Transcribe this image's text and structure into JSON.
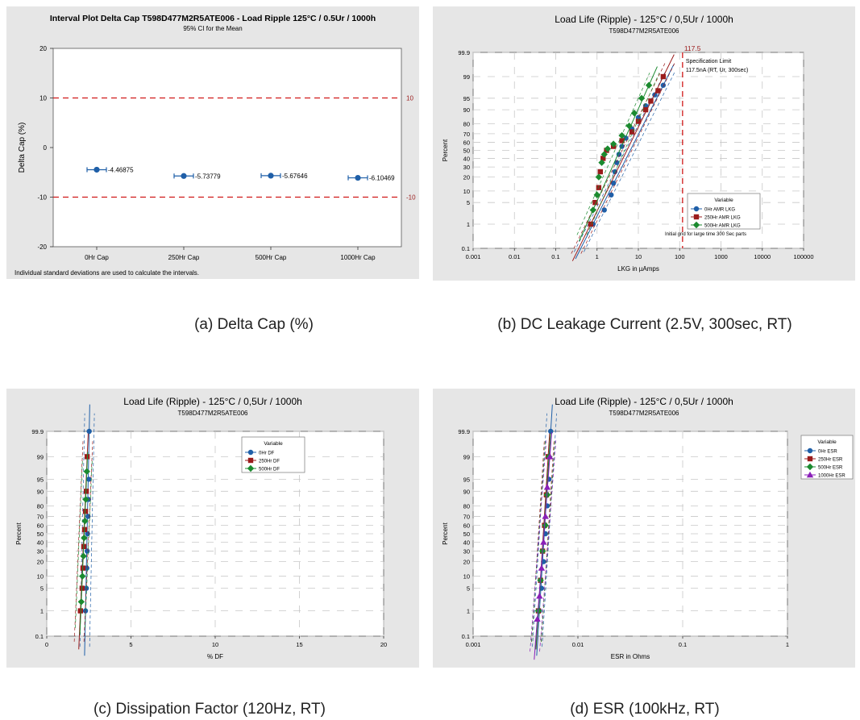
{
  "colors": {
    "blue": "#1f5fa8",
    "red": "#9b1c1c",
    "green": "#1b8a2f",
    "purple": "#8a1fb8",
    "refline": "#d01818"
  },
  "captions": {
    "a": "(a)   Delta Cap (%)",
    "b": "(b) DC Leakage Current (2.5V, 300sec, RT)",
    "c": "(c) Dissipation Factor (120Hz, RT)",
    "d": "(d) ESR (100kHz, RT)"
  },
  "chart_data": [
    {
      "id": "a",
      "type": "interval",
      "title": "Interval Plot Delta Cap T598D477M2R5ATE006 - Load Ripple 125°C / 0.5Ur / 1000h",
      "subtitle": "95% CI for the Mean",
      "ylabel": "Delta Cap (%)",
      "xlabel": "",
      "ylim": [
        -20,
        20
      ],
      "yticks": [
        "20",
        "10",
        "0",
        "-10",
        "-20"
      ],
      "categories": [
        "0Hr Cap",
        "250Hr Cap",
        "500Hr Cap",
        "1000Hr Cap"
      ],
      "means": [
        -4.46875,
        -5.73779,
        -5.67646,
        -6.10469
      ],
      "mean_labels": [
        "-4.46875",
        "-5.73779",
        "-5.67646",
        "-6.10469"
      ],
      "ci_halfwidth": [
        0.5,
        0.5,
        0.5,
        0.5
      ],
      "reference_lines": [
        10,
        -10
      ],
      "reference_labels": [
        "10",
        "-10"
      ],
      "footnote": "Individual standard deviations are used to calculate the intervals."
    },
    {
      "id": "b",
      "type": "probability",
      "title": "Load Life (Ripple) - 125°C / 0,5Ur / 1000h",
      "subtitle": "T598D477M2R5ATE006",
      "ylabel": "Percent",
      "xlabel": "LKG in µAmps",
      "xscale": "log",
      "xlim": [
        0.001,
        100000
      ],
      "xticks": [
        "0.001",
        "0.01",
        "0.1",
        "1",
        "10",
        "100",
        "1000",
        "10000",
        "100000"
      ],
      "yticks": [
        "99.9",
        "99",
        "95",
        "90",
        "80",
        "70",
        "60",
        "50",
        "40",
        "30",
        "20",
        "10",
        "5",
        "1",
        "0.1"
      ],
      "limit_value": 117.5,
      "limit_label": "117.5",
      "annotation": [
        "Specification Limit",
        "117.5nA (RT, Ur, 300sec)"
      ],
      "note": "Initial grid for large time 300 Sec parts",
      "legend_title": "Variable",
      "legend_position": "right",
      "series": [
        {
          "name": "0Hr AMR LKG",
          "color": "blue",
          "marker": "circle",
          "x": [
            0.8,
            1.5,
            2.2,
            2.5,
            2.7,
            3.0,
            3.4,
            4.0,
            5.0,
            7.0,
            10,
            15,
            25,
            40
          ],
          "p": [
            1,
            3,
            8,
            15,
            25,
            35,
            45,
            55,
            65,
            75,
            85,
            92,
            96,
            98
          ]
        },
        {
          "name": "250Hr AMR LKG",
          "color": "red",
          "marker": "square",
          "x": [
            0.7,
            0.9,
            1.1,
            1.2,
            1.4,
            1.7,
            2.5,
            4.0,
            7.0,
            10,
            15,
            20,
            30,
            40
          ],
          "p": [
            1,
            5,
            12,
            25,
            40,
            50,
            55,
            62,
            72,
            82,
            90,
            94,
            97,
            99
          ]
        },
        {
          "name": "500Hr AMR LKG",
          "color": "green",
          "marker": "diamond",
          "x": [
            0.8,
            1.0,
            1.1,
            1.3,
            1.5,
            1.8,
            2.5,
            4.0,
            6.0,
            8.0,
            12,
            18
          ],
          "p": [
            3,
            8,
            20,
            35,
            45,
            52,
            58,
            68,
            78,
            88,
            95,
            98
          ]
        }
      ]
    },
    {
      "id": "c",
      "type": "probability",
      "title": "Load Life (Ripple) - 125°C / 0,5Ur / 1000h",
      "subtitle": "T598D477M2R5ATE006",
      "ylabel": "Percent",
      "xlabel": "% DF",
      "xscale": "linear",
      "xlim": [
        0,
        20
      ],
      "xticks": [
        "0",
        "5",
        "10",
        "15",
        "20"
      ],
      "yticks": [
        "99.9",
        "99",
        "95",
        "90",
        "80",
        "70",
        "60",
        "50",
        "40",
        "30",
        "20",
        "10",
        "5",
        "1",
        "0.1"
      ],
      "legend_title": "Variable",
      "legend_position": "top-right",
      "series": [
        {
          "name": "0Hr DF",
          "color": "blue",
          "marker": "circle",
          "x": [
            2.3,
            2.35,
            2.38,
            2.4,
            2.42,
            2.45,
            2.48,
            2.5,
            2.52
          ],
          "p": [
            1,
            5,
            15,
            30,
            50,
            70,
            85,
            95,
            99.9
          ]
        },
        {
          "name": "250Hr DF",
          "color": "red",
          "marker": "square",
          "x": [
            2.0,
            2.1,
            2.15,
            2.2,
            2.25,
            2.3,
            2.35,
            2.4
          ],
          "p": [
            1,
            5,
            15,
            35,
            55,
            75,
            90,
            99
          ]
        },
        {
          "name": "500Hr DF",
          "color": "green",
          "marker": "diamond",
          "x": [
            2.05,
            2.12,
            2.18,
            2.22,
            2.27,
            2.32,
            2.38
          ],
          "p": [
            2,
            10,
            25,
            45,
            65,
            85,
            97
          ]
        }
      ]
    },
    {
      "id": "d",
      "type": "probability",
      "title": "Load Life (Ripple) - 125°C / 0,5Ur / 1000h",
      "subtitle": "T598D477M2R5ATE006",
      "ylabel": "Percent",
      "xlabel": "ESR in Ohms",
      "xscale": "log",
      "xlim": [
        0.001,
        1
      ],
      "xticks": [
        "0.001",
        "0.01",
        "0.1",
        "1"
      ],
      "yticks": [
        "99.9",
        "99",
        "95",
        "90",
        "80",
        "70",
        "60",
        "50",
        "40",
        "30",
        "20",
        "10",
        "5",
        "1",
        "0.1"
      ],
      "legend_title": "Variable",
      "legend_position": "outside-right",
      "series": [
        {
          "name": "0Hr ESR",
          "color": "blue",
          "marker": "circle",
          "x": [
            0.0043,
            0.0045,
            0.0047,
            0.0049,
            0.0051,
            0.0053,
            0.0055
          ],
          "p": [
            1,
            5,
            20,
            50,
            80,
            95,
            99.9
          ]
        },
        {
          "name": "250Hr ESR",
          "color": "red",
          "marker": "square",
          "x": [
            0.0042,
            0.0044,
            0.0046,
            0.0048,
            0.005,
            0.0052
          ],
          "p": [
            1,
            8,
            30,
            60,
            88,
            99
          ]
        },
        {
          "name": "500Hr ESR",
          "color": "green",
          "marker": "diamond",
          "x": [
            0.0042,
            0.0044,
            0.0046,
            0.0049,
            0.0051,
            0.0053
          ],
          "p": [
            1,
            8,
            30,
            60,
            88,
            99
          ]
        },
        {
          "name": "1000Hr ESR",
          "color": "purple",
          "marker": "triangle",
          "x": [
            0.0041,
            0.0043,
            0.0045,
            0.0047,
            0.0049,
            0.0051,
            0.0054
          ],
          "p": [
            0.5,
            3,
            15,
            40,
            70,
            92,
            99
          ]
        }
      ]
    }
  ]
}
